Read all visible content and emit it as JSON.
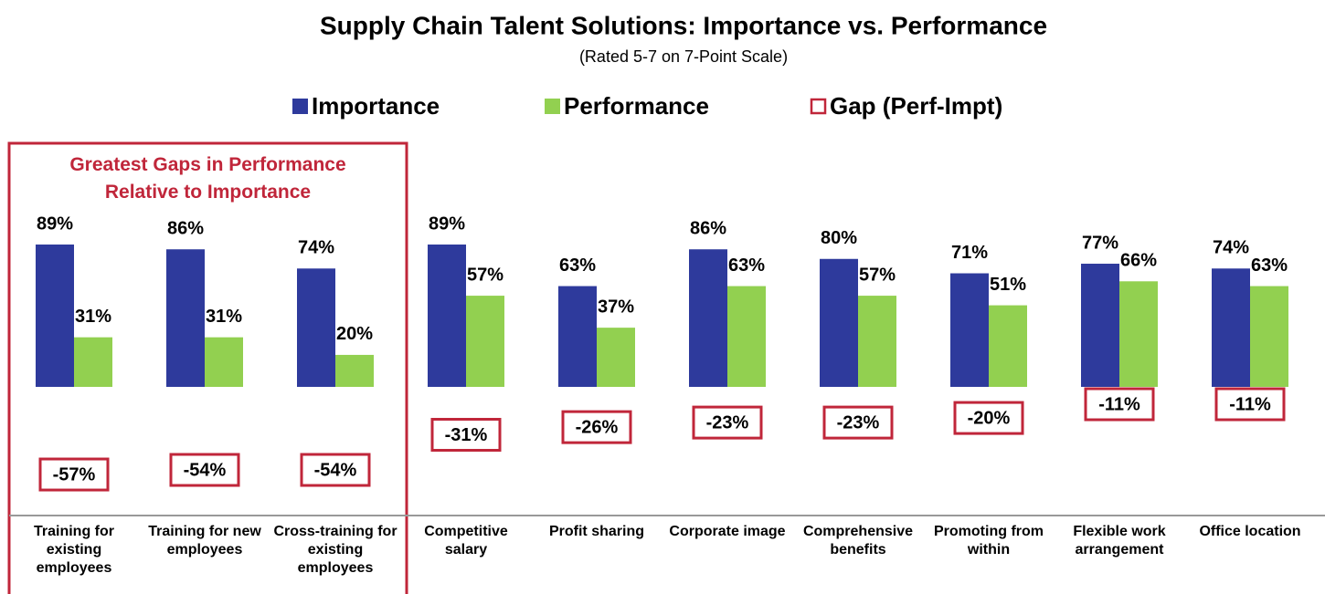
{
  "chart_data": {
    "type": "bar",
    "title": "Supply Chain Talent Solutions:   Importance vs. Performance",
    "subtitle": "(Rated 5-7 on 7-Point Scale)",
    "annotation": "Greatest Gaps in Performance Relative to Importance",
    "categories": [
      "Training for existing employees",
      "Training for new employees",
      "Cross-training for existing employees",
      "Competitive salary",
      "Profit sharing",
      "Corporate image",
      "Comprehensive benefits",
      "Promoting from within",
      "Flexible work arrangement",
      "Office location"
    ],
    "series": [
      {
        "name": "Importance",
        "color": "#2e3a9c",
        "values": [
          89,
          86,
          74,
          89,
          63,
          86,
          80,
          71,
          77,
          74
        ],
        "value_labels": [
          "89%",
          "86%",
          "74%",
          "89%",
          "63%",
          "86%",
          "80%",
          "71%",
          "77%",
          "74%"
        ]
      },
      {
        "name": "Performance",
        "color": "#92d050",
        "values": [
          31,
          31,
          20,
          57,
          37,
          63,
          57,
          51,
          66,
          63
        ],
        "value_labels": [
          "31%",
          "31%",
          "20%",
          "57%",
          "37%",
          "63%",
          "57%",
          "51%",
          "66%",
          "63%"
        ]
      },
      {
        "name": "Gap (Perf-Impt)",
        "color": "#c0263a",
        "axis": "y2",
        "values": [
          -57,
          -54,
          -54,
          -31,
          -26,
          -23,
          -23,
          -20,
          -11,
          -11
        ],
        "value_labels": [
          "-57%",
          "-54%",
          "-54%",
          "-31%",
          "-26%",
          "-23%",
          "-23%",
          "-20%",
          "-11%",
          "-11%"
        ]
      }
    ],
    "ylim": [
      0,
      100
    ],
    "y2lim": [
      -70,
      0
    ],
    "legend": "top"
  }
}
